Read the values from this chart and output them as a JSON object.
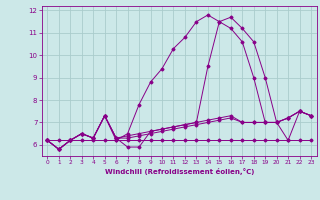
{
  "xlabel": "Windchill (Refroidissement éolien,°C)",
  "bg_color": "#cce8e8",
  "grid_color": "#aacccc",
  "line_color": "#880088",
  "x_values": [
    0,
    1,
    2,
    3,
    4,
    5,
    6,
    7,
    8,
    9,
    10,
    11,
    12,
    13,
    14,
    15,
    16,
    17,
    18,
    19,
    20,
    21,
    22,
    23
  ],
  "series": [
    [
      6.2,
      5.8,
      6.2,
      6.5,
      6.3,
      7.3,
      6.3,
      5.9,
      5.9,
      6.6,
      6.7,
      6.8,
      6.9,
      7.0,
      9.5,
      11.5,
      11.7,
      11.2,
      10.6,
      9.0,
      7.0,
      6.2,
      7.5,
      7.3
    ],
    [
      6.2,
      5.8,
      6.2,
      6.5,
      6.3,
      7.3,
      6.2,
      6.5,
      7.8,
      8.8,
      9.4,
      10.3,
      10.8,
      11.5,
      11.8,
      11.5,
      11.2,
      10.6,
      9.0,
      7.0,
      7.0,
      7.2,
      7.5,
      7.3
    ],
    [
      6.2,
      6.2,
      6.2,
      6.2,
      6.2,
      6.2,
      6.2,
      6.2,
      6.2,
      6.2,
      6.2,
      6.2,
      6.2,
      6.2,
      6.2,
      6.2,
      6.2,
      6.2,
      6.2,
      6.2,
      6.2,
      6.2,
      6.2,
      6.2
    ],
    [
      6.2,
      5.8,
      6.2,
      6.5,
      6.3,
      7.3,
      6.3,
      6.4,
      6.5,
      6.6,
      6.7,
      6.8,
      6.9,
      7.0,
      7.1,
      7.2,
      7.3,
      7.0,
      7.0,
      7.0,
      7.0,
      7.2,
      7.5,
      7.3
    ],
    [
      6.2,
      5.8,
      6.2,
      6.5,
      6.3,
      7.3,
      6.3,
      6.3,
      6.4,
      6.5,
      6.6,
      6.7,
      6.8,
      6.9,
      7.0,
      7.1,
      7.2,
      7.0,
      7.0,
      7.0,
      7.0,
      7.2,
      7.5,
      7.3
    ]
  ],
  "ylim": [
    5.5,
    12.2
  ],
  "yticks": [
    6,
    7,
    8,
    9,
    10,
    11,
    12
  ],
  "xlim": [
    -0.5,
    23.5
  ],
  "xticks": [
    0,
    1,
    2,
    3,
    4,
    5,
    6,
    7,
    8,
    9,
    10,
    11,
    12,
    13,
    14,
    15,
    16,
    17,
    18,
    19,
    20,
    21,
    22,
    23
  ]
}
